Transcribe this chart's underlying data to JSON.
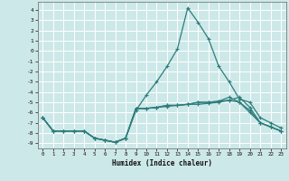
{
  "xlabel": "Humidex (Indice chaleur)",
  "bg_color": "#cde8e8",
  "grid_color": "#ffffff",
  "line_color": "#2e7d7d",
  "xlim": [
    -0.5,
    23.5
  ],
  "ylim": [
    -9.5,
    4.8
  ],
  "xticks": [
    0,
    1,
    2,
    3,
    4,
    5,
    6,
    7,
    8,
    9,
    10,
    11,
    12,
    13,
    14,
    15,
    16,
    17,
    18,
    19,
    20,
    21,
    22,
    23
  ],
  "yticks": [
    4,
    3,
    2,
    1,
    0,
    -1,
    -2,
    -3,
    -4,
    -5,
    -6,
    -7,
    -8,
    -9
  ],
  "line1_x": [
    0,
    1,
    2,
    3,
    4,
    5,
    6,
    7,
    8,
    9,
    10,
    11,
    12,
    13,
    14,
    15,
    16,
    17,
    18,
    19,
    20,
    21,
    22,
    23
  ],
  "line1_y": [
    -6.5,
    -7.8,
    -7.8,
    -7.8,
    -7.8,
    -8.5,
    -8.7,
    -8.9,
    -8.5,
    -5.8,
    -4.3,
    -3.0,
    -1.5,
    0.2,
    4.2,
    2.8,
    1.2,
    -1.5,
    -3.0,
    -4.7,
    -5.0,
    -6.5,
    -7.0,
    -7.5
  ],
  "line2_x": [
    0,
    1,
    2,
    3,
    4,
    5,
    6,
    7,
    8,
    9,
    10,
    11,
    12,
    13,
    14,
    15,
    16,
    17,
    18,
    19,
    20,
    21,
    22,
    23
  ],
  "line2_y": [
    -6.5,
    -7.8,
    -7.8,
    -7.8,
    -7.8,
    -8.5,
    -8.7,
    -8.9,
    -8.5,
    -5.6,
    -5.6,
    -5.5,
    -5.4,
    -5.3,
    -5.2,
    -5.2,
    -5.1,
    -5.0,
    -4.8,
    -5.0,
    -5.8,
    -7.0,
    -7.4,
    -7.8
  ],
  "line3_x": [
    0,
    1,
    2,
    3,
    4,
    5,
    6,
    7,
    8,
    9,
    10,
    11,
    12,
    13,
    14,
    15,
    16,
    17,
    18,
    19,
    20,
    21,
    22,
    23
  ],
  "line3_y": [
    -6.5,
    -7.8,
    -7.8,
    -7.8,
    -7.8,
    -8.5,
    -8.7,
    -8.9,
    -8.5,
    -5.6,
    -5.6,
    -5.5,
    -5.3,
    -5.3,
    -5.2,
    -5.0,
    -5.0,
    -4.9,
    -4.8,
    -4.5,
    -5.5,
    -7.0,
    -7.4,
    -7.8
  ],
  "line4_x": [
    0,
    1,
    2,
    3,
    4,
    5,
    6,
    7,
    8,
    9,
    10,
    11,
    12,
    13,
    14,
    15,
    16,
    17,
    18,
    19,
    20,
    21,
    22,
    23
  ],
  "line4_y": [
    -6.5,
    -7.8,
    -7.8,
    -7.8,
    -7.8,
    -8.5,
    -8.7,
    -8.9,
    -8.5,
    -5.6,
    -5.6,
    -5.5,
    -5.3,
    -5.3,
    -5.2,
    -5.0,
    -5.0,
    -4.9,
    -4.5,
    -5.0,
    -6.0,
    -7.0,
    -7.4,
    -7.8
  ]
}
